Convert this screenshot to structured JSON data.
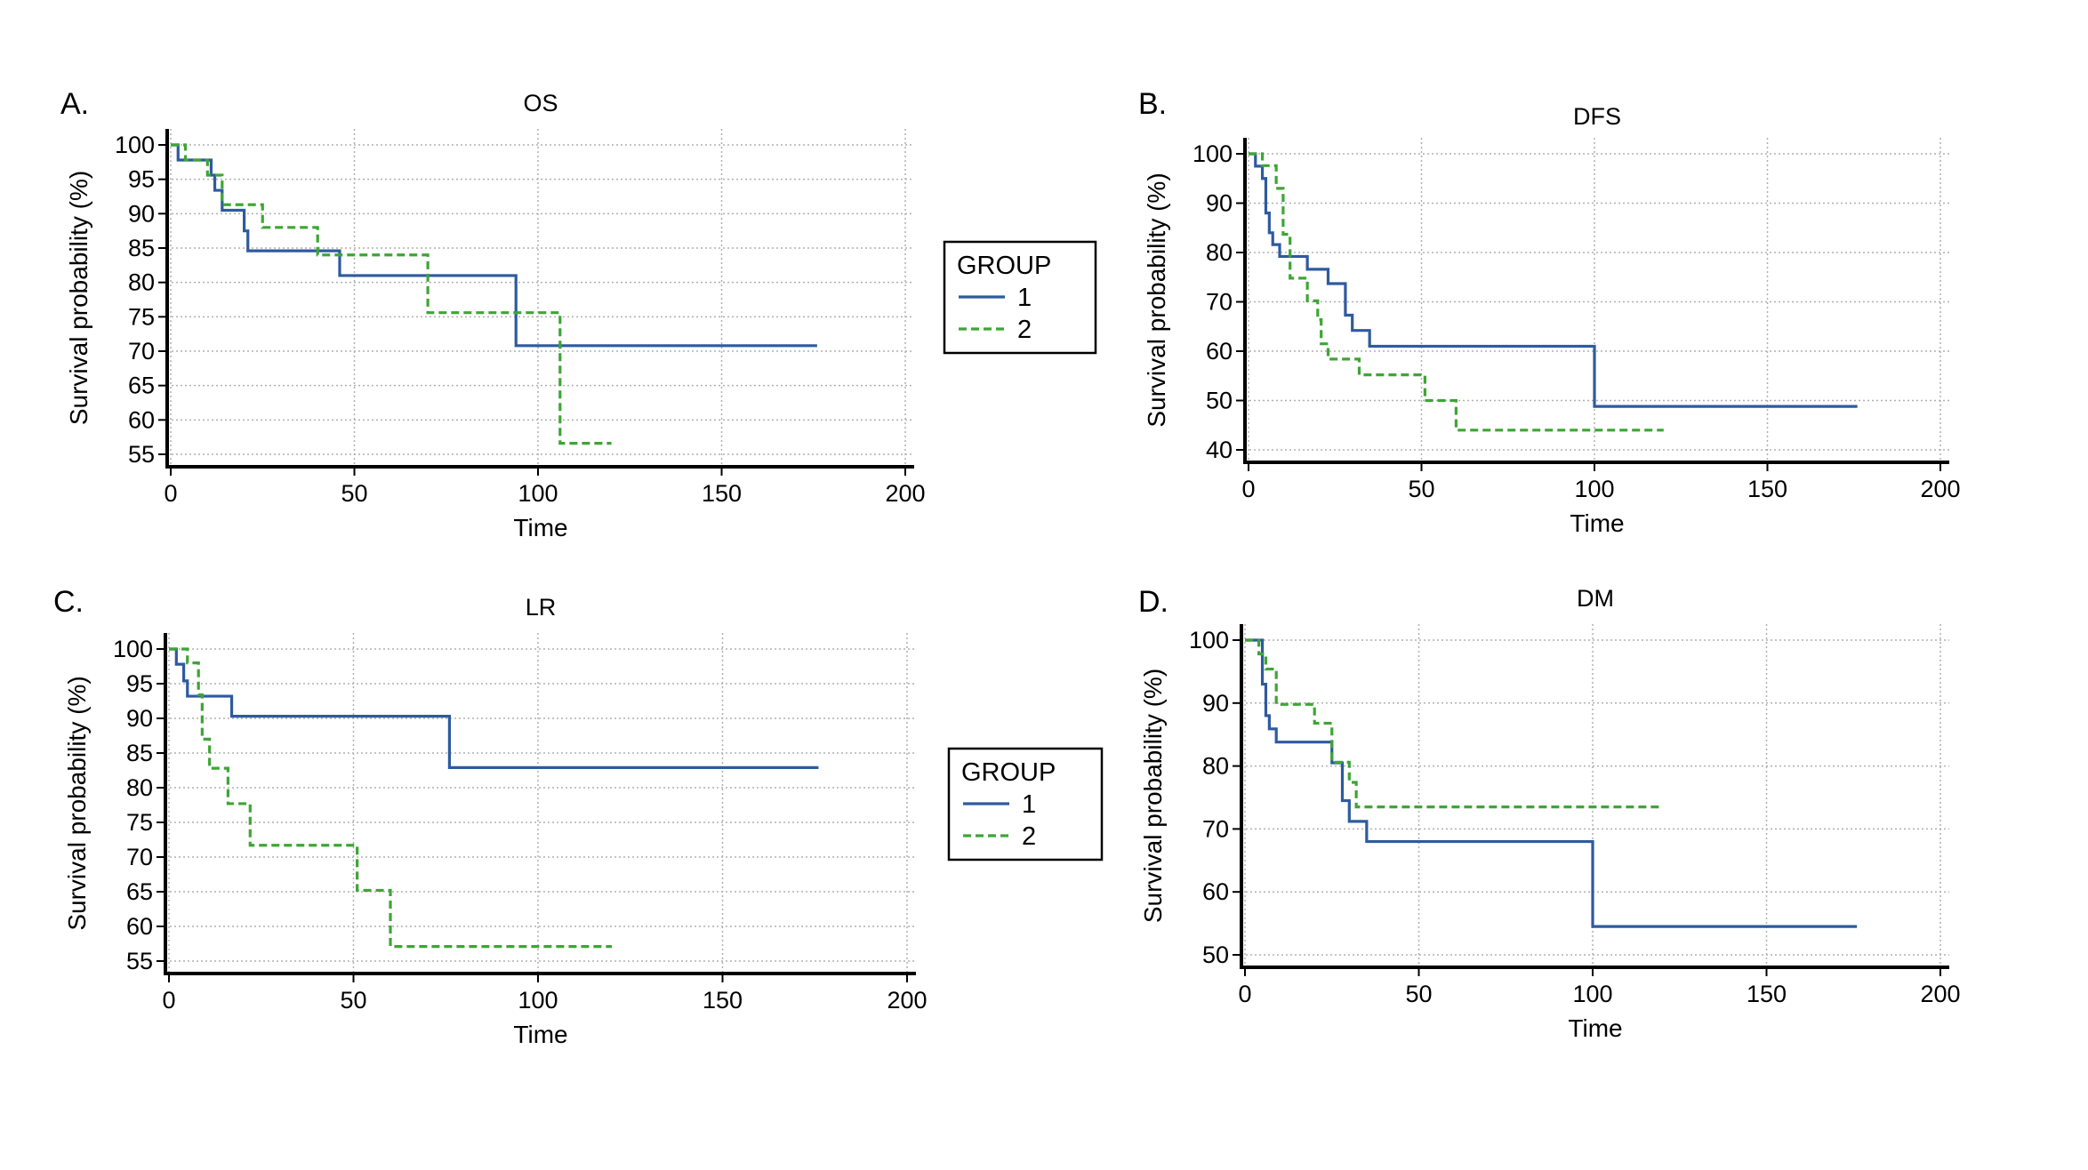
{
  "colors": {
    "group1": "#2e5aa0",
    "group2": "#3ea535",
    "grid": "#b0b0b0",
    "axis": "#000000"
  },
  "legend": {
    "title": "GROUP",
    "labels": [
      "1",
      "2"
    ]
  },
  "chart_data": [
    {
      "panel": "A.",
      "type": "line",
      "step": true,
      "title": "OS",
      "xlabel": "Time",
      "ylabel": "Survival probability (%)",
      "xlim": [
        0,
        200
      ],
      "ylim": [
        55,
        100
      ],
      "grid": true,
      "legend": "right",
      "xticks": [
        0,
        50,
        100,
        150,
        200
      ],
      "yticks": [
        55,
        60,
        65,
        70,
        75,
        80,
        85,
        90,
        95,
        100
      ],
      "series": [
        {
          "name": "1",
          "style": "solid",
          "x": [
            0,
            2,
            10,
            11,
            12,
            14,
            20,
            21,
            46,
            94,
            176
          ],
          "y": [
            100,
            97.8,
            97.8,
            95.6,
            93.4,
            90.5,
            87.5,
            84.6,
            81,
            70.8,
            70.8
          ]
        },
        {
          "name": "2",
          "style": "dashed",
          "x": [
            0,
            4,
            10,
            14,
            25,
            40,
            70,
            106,
            120
          ],
          "y": [
            100,
            97.8,
            95.6,
            91.3,
            88,
            84,
            75.6,
            56.6,
            56.6
          ]
        }
      ]
    },
    {
      "panel": "B.",
      "type": "line",
      "step": true,
      "title": "DFS",
      "xlabel": "Time",
      "ylabel": "Survival probability (%)",
      "xlim": [
        0,
        200
      ],
      "ylim": [
        40,
        100
      ],
      "grid": true,
      "legend": "none",
      "xticks": [
        0,
        50,
        100,
        150,
        200
      ],
      "yticks": [
        40,
        50,
        60,
        70,
        80,
        90,
        100
      ],
      "series": [
        {
          "name": "1",
          "style": "solid",
          "x": [
            0,
            2,
            4,
            5,
            6,
            7,
            9,
            17,
            23,
            28,
            30,
            35,
            100,
            176
          ],
          "y": [
            100,
            97.5,
            95,
            88,
            84,
            81.6,
            79.2,
            76.6,
            73.7,
            67.3,
            64.2,
            61,
            48.8,
            48.8
          ]
        },
        {
          "name": "2",
          "style": "dashed",
          "x": [
            0,
            4,
            8,
            10,
            12,
            17,
            20,
            21,
            23,
            32,
            51,
            60,
            120
          ],
          "y": [
            100,
            97.6,
            93,
            83.7,
            74.8,
            70.2,
            66.4,
            61.5,
            58.4,
            55.2,
            50,
            44,
            44
          ]
        }
      ]
    },
    {
      "panel": "C.",
      "type": "line",
      "step": true,
      "title": "LR",
      "xlabel": "Time",
      "ylabel": "Survival probability (%)",
      "xlim": [
        0,
        200
      ],
      "ylim": [
        55,
        100
      ],
      "grid": true,
      "legend": "right",
      "xticks": [
        0,
        50,
        100,
        150,
        200
      ],
      "yticks": [
        55,
        60,
        65,
        70,
        75,
        80,
        85,
        90,
        95,
        100
      ],
      "series": [
        {
          "name": "1",
          "style": "solid",
          "x": [
            0,
            2,
            4,
            5,
            17,
            76,
            176
          ],
          "y": [
            100,
            97.8,
            95.4,
            93.2,
            90.3,
            82.9,
            82.9
          ]
        },
        {
          "name": "2",
          "style": "dashed",
          "x": [
            0,
            5,
            8,
            9,
            11,
            16,
            22,
            51,
            60,
            120
          ],
          "y": [
            100,
            98,
            93.4,
            87,
            82.8,
            77.7,
            71.7,
            65.2,
            57.1,
            57.1
          ]
        }
      ]
    },
    {
      "panel": "D.",
      "type": "line",
      "step": true,
      "title": "DM",
      "xlabel": "Time",
      "ylabel": "Survival probability (%)",
      "xlim": [
        0,
        200
      ],
      "ylim": [
        50,
        100
      ],
      "grid": true,
      "legend": "none",
      "xticks": [
        0,
        50,
        100,
        150,
        200
      ],
      "yticks": [
        50,
        60,
        70,
        80,
        90,
        100
      ],
      "series": [
        {
          "name": "1",
          "style": "solid",
          "x": [
            0,
            5,
            6,
            7,
            9,
            25,
            28,
            30,
            35,
            100,
            176
          ],
          "y": [
            100,
            93,
            88,
            85.9,
            83.8,
            80.5,
            74.5,
            71.2,
            68,
            54.5,
            54.5
          ]
        },
        {
          "name": "2",
          "style": "dashed",
          "x": [
            0,
            4,
            6,
            9,
            20,
            25,
            30,
            32,
            120
          ],
          "y": [
            100,
            97.8,
            95.4,
            89.8,
            86.8,
            80.6,
            77.4,
            73.5,
            73.5
          ]
        }
      ]
    }
  ]
}
